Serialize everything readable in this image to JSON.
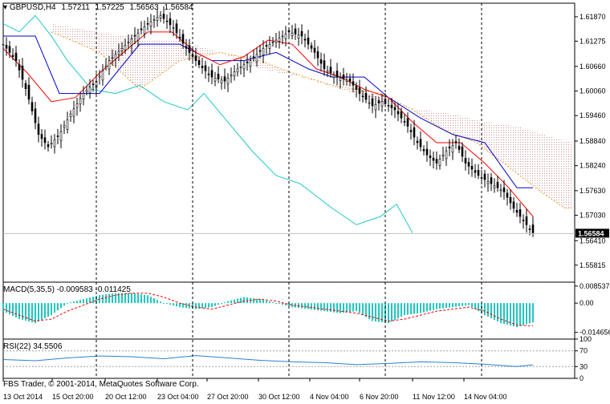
{
  "header": {
    "symbol": "GBPUSD,H4",
    "open": "1.57211",
    "high": "1.57225",
    "low": "1.56563",
    "close": "1.56584"
  },
  "macd_header": "MACD(5,35,5) -0.009583 -0.011425",
  "rsi_header": "RSI(22) 34.5506",
  "copyright": "FBS Trader, © 2001-2014, MetaQuotes Software Corp.",
  "colors": {
    "bg": "#ffffff",
    "axis": "#000000",
    "macd_hist": "#20c8c0",
    "macd_signal": "#ff0000",
    "rsi_line": "#2a7fd4",
    "tenkan": "#ff0000",
    "kijun": "#0000cc",
    "chikou": "#20c8c8",
    "cloud": "#d09090",
    "senkou_b": "#e8a030",
    "current_line": "#c0c0c0"
  },
  "chart_data": [
    {
      "type": "candlestick",
      "title": "GBPUSD,H4",
      "ylim": [
        1.554,
        1.622
      ],
      "yticks": [
        "1.61870",
        "1.61275",
        "1.60660",
        "1.60060",
        "1.59460",
        "1.58840",
        "1.58240",
        "1.57630",
        "1.57030",
        "1.56410",
        "1.55815"
      ],
      "current_price": "1.56584",
      "x_labels": [
        "13 Oct 2014",
        "15 Oct 20:00",
        "20 Oct 12:00",
        "23 Oct 04:00",
        "27 Oct 20:00",
        "30 Oct 12:00",
        "4 Nov 04:00",
        "6 Nov 20:00",
        "11 Nov 12:00",
        "14 Nov 04:00"
      ],
      "period_separators": [
        "20 Oct",
        "27 Oct",
        "3 Nov",
        "10 Nov",
        "17 Nov"
      ],
      "close_path": [
        [
          0,
          1.612
        ],
        [
          8,
          1.608
        ],
        [
          15,
          1.6
        ],
        [
          22,
          1.59
        ],
        [
          28,
          1.587
        ],
        [
          35,
          1.59
        ],
        [
          42,
          1.595
        ],
        [
          50,
          1.6
        ],
        [
          58,
          1.603
        ],
        [
          66,
          1.608
        ],
        [
          74,
          1.611
        ],
        [
          82,
          1.614
        ],
        [
          90,
          1.617
        ],
        [
          98,
          1.619
        ],
        [
          106,
          1.616
        ],
        [
          114,
          1.611
        ],
        [
          122,
          1.607
        ],
        [
          130,
          1.604
        ],
        [
          138,
          1.603
        ],
        [
          146,
          1.606
        ],
        [
          154,
          1.608
        ],
        [
          162,
          1.611
        ],
        [
          170,
          1.613
        ],
        [
          178,
          1.615
        ],
        [
          186,
          1.614
        ],
        [
          194,
          1.61
        ],
        [
          200,
          1.606
        ],
        [
          208,
          1.604
        ],
        [
          216,
          1.603
        ],
        [
          222,
          1.6
        ],
        [
          230,
          1.597
        ],
        [
          236,
          1.598
        ],
        [
          244,
          1.596
        ],
        [
          252,
          1.592
        ],
        [
          258,
          1.588
        ],
        [
          264,
          1.585
        ],
        [
          270,
          1.583
        ],
        [
          276,
          1.586
        ],
        [
          282,
          1.588
        ],
        [
          288,
          1.583
        ],
        [
          296,
          1.58
        ],
        [
          304,
          1.578
        ],
        [
          312,
          1.576
        ],
        [
          318,
          1.572
        ],
        [
          324,
          1.569
        ],
        [
          330,
          1.566
        ]
      ],
      "tenkan_path": [
        [
          0,
          1.611
        ],
        [
          15,
          1.605
        ],
        [
          30,
          1.598
        ],
        [
          45,
          1.599
        ],
        [
          60,
          1.605
        ],
        [
          75,
          1.61
        ],
        [
          90,
          1.615
        ],
        [
          105,
          1.615
        ],
        [
          120,
          1.61
        ],
        [
          135,
          1.607
        ],
        [
          150,
          1.609
        ],
        [
          165,
          1.613
        ],
        [
          180,
          1.612
        ],
        [
          195,
          1.606
        ],
        [
          210,
          1.604
        ],
        [
          225,
          1.601
        ],
        [
          240,
          1.599
        ],
        [
          255,
          1.593
        ],
        [
          270,
          1.588
        ],
        [
          285,
          1.588
        ],
        [
          300,
          1.583
        ],
        [
          315,
          1.577
        ],
        [
          330,
          1.57
        ]
      ],
      "kijun_path": [
        [
          0,
          1.614
        ],
        [
          20,
          1.614
        ],
        [
          35,
          1.6
        ],
        [
          60,
          1.6
        ],
        [
          85,
          1.612
        ],
        [
          110,
          1.612
        ],
        [
          130,
          1.608
        ],
        [
          150,
          1.608
        ],
        [
          170,
          1.61
        ],
        [
          190,
          1.606
        ],
        [
          205,
          1.604
        ],
        [
          225,
          1.604
        ],
        [
          240,
          1.599
        ],
        [
          260,
          1.594
        ],
        [
          280,
          1.59
        ],
        [
          300,
          1.588
        ],
        [
          320,
          1.577
        ],
        [
          330,
          1.577
        ]
      ],
      "chikou_path": [
        [
          0,
          1.617
        ],
        [
          10,
          1.615
        ],
        [
          20,
          1.619
        ],
        [
          30,
          1.614
        ],
        [
          40,
          1.608
        ],
        [
          55,
          1.601
        ],
        [
          70,
          1.6
        ],
        [
          85,
          1.602
        ],
        [
          100,
          1.598
        ],
        [
          115,
          1.596
        ],
        [
          125,
          1.6
        ],
        [
          140,
          1.593
        ],
        [
          155,
          1.586
        ],
        [
          170,
          1.58
        ],
        [
          185,
          1.578
        ],
        [
          205,
          1.572
        ],
        [
          220,
          1.568
        ],
        [
          235,
          1.57
        ],
        [
          245,
          1.573
        ],
        [
          255,
          1.566
        ]
      ],
      "cloud_top_path": [
        [
          30,
          1.617
        ],
        [
          60,
          1.615
        ],
        [
          90,
          1.613
        ],
        [
          110,
          1.613
        ],
        [
          135,
          1.61
        ],
        [
          160,
          1.606
        ],
        [
          185,
          1.604
        ],
        [
          210,
          1.601
        ],
        [
          235,
          1.598
        ],
        [
          260,
          1.596
        ],
        [
          280,
          1.595
        ],
        [
          300,
          1.593
        ],
        [
          320,
          1.592
        ],
        [
          345,
          1.589
        ],
        [
          355,
          1.588
        ]
      ],
      "cloud_bottom_path": [
        [
          30,
          1.615
        ],
        [
          60,
          1.61
        ],
        [
          85,
          1.601
        ],
        [
          110,
          1.608
        ],
        [
          135,
          1.61
        ],
        [
          160,
          1.608
        ],
        [
          180,
          1.605
        ],
        [
          205,
          1.602
        ],
        [
          235,
          1.6
        ],
        [
          255,
          1.596
        ],
        [
          275,
          1.591
        ],
        [
          295,
          1.588
        ],
        [
          315,
          1.582
        ],
        [
          335,
          1.576
        ],
        [
          350,
          1.572
        ],
        [
          355,
          1.572
        ]
      ]
    },
    {
      "type": "bar",
      "title": "MACD(5,35,5) -0.009583 -0.011425",
      "ylim": [
        -0.018,
        0.0105
      ],
      "yticks": [
        "0.008537",
        "0.00",
        "-0.014656"
      ],
      "histogram_path": [
        [
          0,
          -0.004
        ],
        [
          10,
          -0.008
        ],
        [
          20,
          -0.01
        ],
        [
          30,
          -0.006
        ],
        [
          40,
          0.0
        ],
        [
          50,
          0.002
        ],
        [
          60,
          0.004
        ],
        [
          70,
          0.005
        ],
        [
          80,
          0.005
        ],
        [
          90,
          0.004
        ],
        [
          100,
          0.0
        ],
        [
          110,
          -0.002
        ],
        [
          120,
          -0.003
        ],
        [
          130,
          -0.002
        ],
        [
          140,
          0.001
        ],
        [
          150,
          0.003
        ],
        [
          160,
          0.002
        ],
        [
          170,
          0.0
        ],
        [
          180,
          -0.002
        ],
        [
          190,
          -0.003
        ],
        [
          200,
          -0.004
        ],
        [
          210,
          -0.005
        ],
        [
          220,
          -0.004
        ],
        [
          230,
          -0.009
        ],
        [
          240,
          -0.01
        ],
        [
          250,
          -0.006
        ],
        [
          260,
          -0.005
        ],
        [
          270,
          -0.003
        ],
        [
          280,
          -0.002
        ],
        [
          290,
          -0.001
        ],
        [
          300,
          -0.006
        ],
        [
          310,
          -0.01
        ],
        [
          320,
          -0.012
        ],
        [
          330,
          -0.0096
        ]
      ],
      "signal_path": [
        [
          0,
          -0.003
        ],
        [
          10,
          -0.006
        ],
        [
          20,
          -0.009
        ],
        [
          30,
          -0.008
        ],
        [
          40,
          -0.004
        ],
        [
          50,
          -0.001
        ],
        [
          60,
          0.002
        ],
        [
          70,
          0.004
        ],
        [
          80,
          0.005
        ],
        [
          90,
          0.005
        ],
        [
          100,
          0.003
        ],
        [
          110,
          0.0
        ],
        [
          120,
          -0.002
        ],
        [
          130,
          -0.003
        ],
        [
          140,
          -0.001
        ],
        [
          150,
          0.001
        ],
        [
          160,
          0.002
        ],
        [
          170,
          0.001
        ],
        [
          180,
          -0.001
        ],
        [
          190,
          -0.002
        ],
        [
          200,
          -0.003
        ],
        [
          210,
          -0.004
        ],
        [
          220,
          -0.005
        ],
        [
          230,
          -0.007
        ],
        [
          240,
          -0.009
        ],
        [
          250,
          -0.008
        ],
        [
          260,
          -0.006
        ],
        [
          270,
          -0.004
        ],
        [
          280,
          -0.003
        ],
        [
          290,
          -0.002
        ],
        [
          300,
          -0.004
        ],
        [
          310,
          -0.008
        ],
        [
          320,
          -0.011
        ],
        [
          330,
          -0.0114
        ]
      ]
    },
    {
      "type": "line",
      "title": "RSI(22) 34.5506",
      "ylim": [
        0,
        100
      ],
      "yticks": [
        "100",
        "70",
        "30",
        "0"
      ],
      "levels": [
        70,
        30
      ],
      "rsi_path": [
        [
          0,
          48
        ],
        [
          20,
          45
        ],
        [
          40,
          52
        ],
        [
          60,
          57
        ],
        [
          80,
          55
        ],
        [
          100,
          50
        ],
        [
          120,
          58
        ],
        [
          140,
          52
        ],
        [
          160,
          46
        ],
        [
          180,
          42
        ],
        [
          200,
          40
        ],
        [
          220,
          35
        ],
        [
          240,
          38
        ],
        [
          260,
          42
        ],
        [
          280,
          40
        ],
        [
          300,
          36
        ],
        [
          320,
          30
        ],
        [
          330,
          34.55
        ]
      ]
    }
  ]
}
